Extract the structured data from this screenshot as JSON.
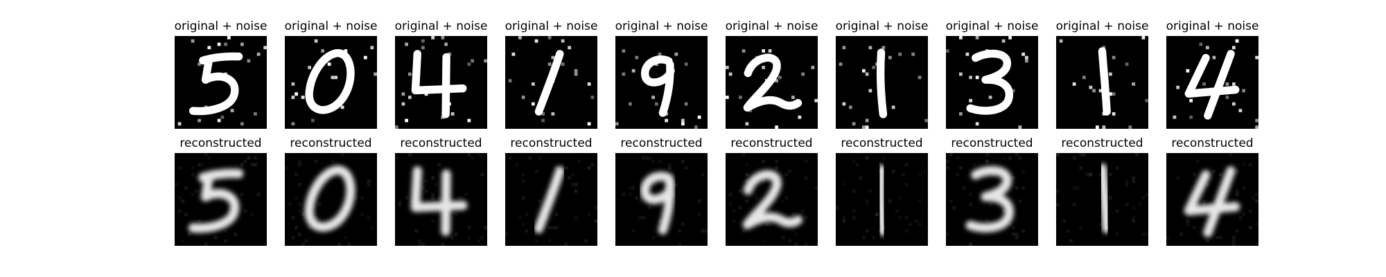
{
  "figure": {
    "rows": [
      {
        "title": "original + noise",
        "kind": "noisy",
        "digits": [
          "5",
          "0",
          "4",
          "1",
          "9",
          "2",
          "1",
          "3",
          "1",
          "4"
        ]
      },
      {
        "title": "reconstructed",
        "kind": "clean",
        "digits": [
          "5",
          "0",
          "4",
          "1",
          "9",
          "2",
          "1",
          "3",
          "1",
          "4"
        ]
      }
    ]
  },
  "colors": {
    "background": "#000000",
    "stroke": "#ffffff",
    "blurred_stroke": "#e6e6e6",
    "noise": "#ffffff"
  }
}
